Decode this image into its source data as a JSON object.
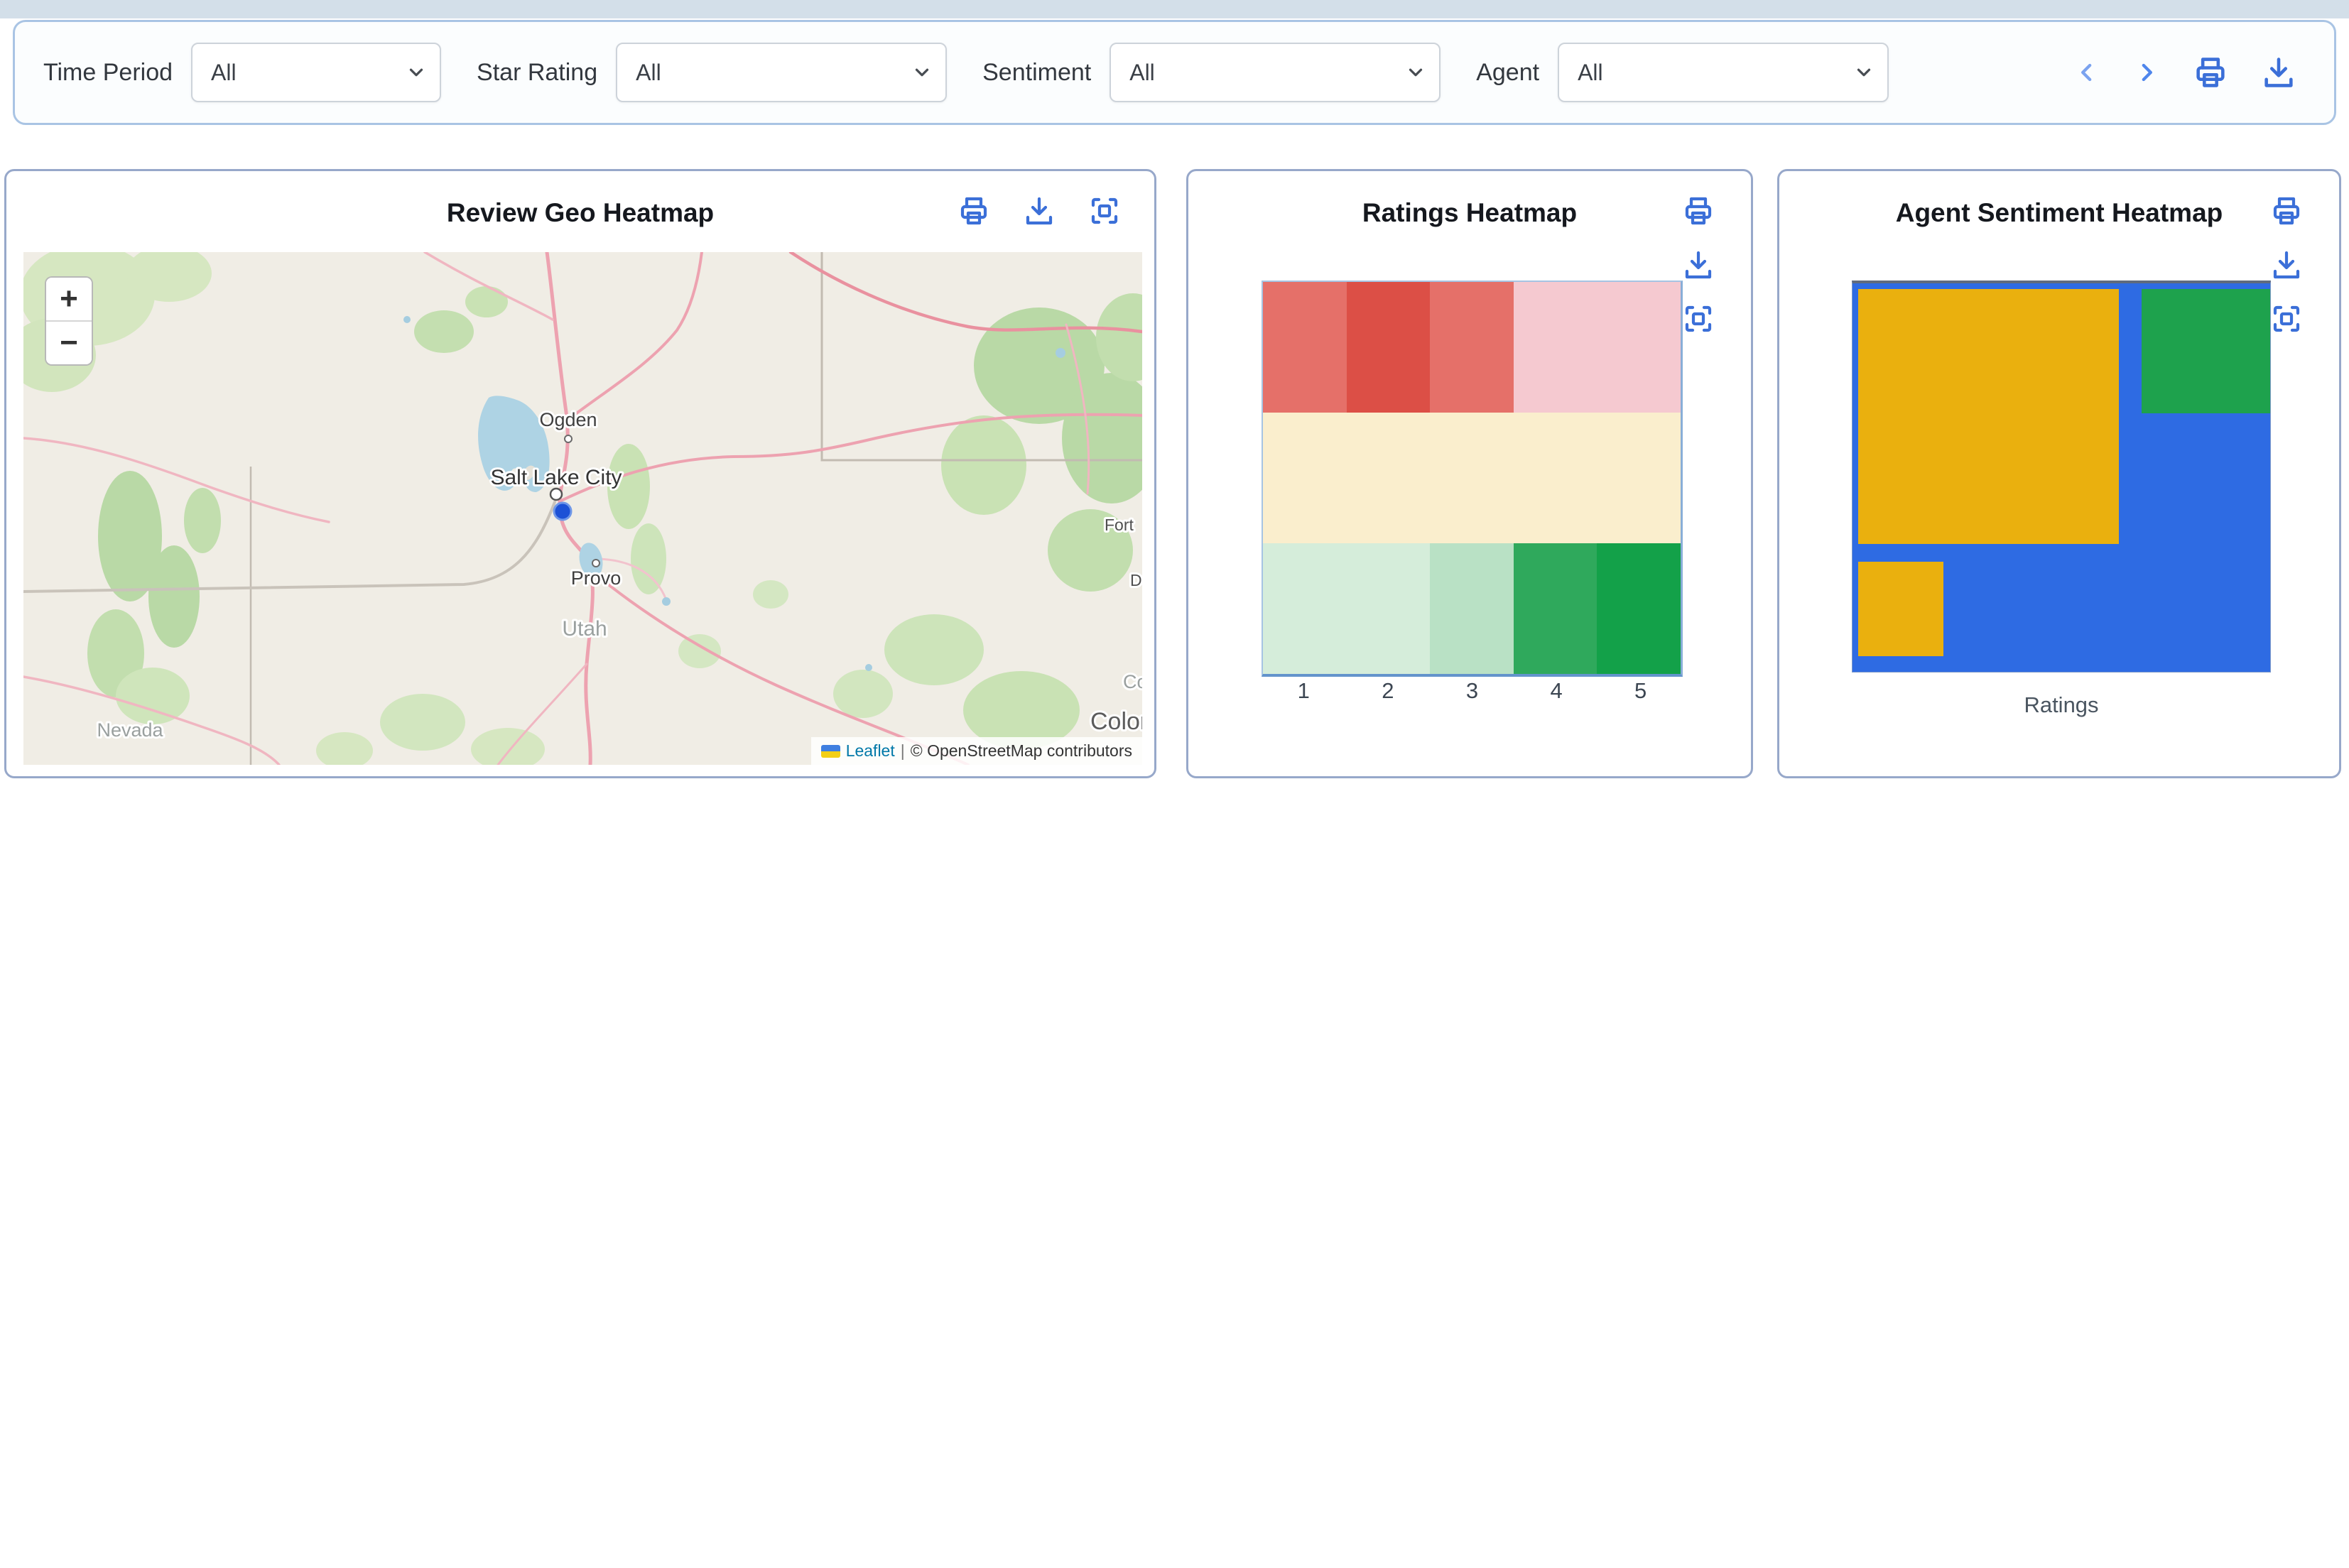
{
  "page": {
    "top_strip_color": "#d3dfe9",
    "accent_blue": "#3b6fd8"
  },
  "filter_bar": {
    "filters": [
      {
        "label": "Time Period",
        "value": "All"
      },
      {
        "label": "Star Rating",
        "value": "All"
      },
      {
        "label": "Sentiment",
        "value": "All"
      },
      {
        "label": "Agent",
        "value": "All"
      }
    ]
  },
  "cards": {
    "geo": {
      "title": "Review Geo Heatmap",
      "map": {
        "zoom_in": "+",
        "zoom_out": "−",
        "labels": {
          "city1": "Ogden",
          "city2": "Salt Lake City",
          "city3": "Provo",
          "state1": "Utah",
          "state2": "Nevada",
          "state3": "Colorado",
          "state3_clipped": "Colorado",
          "poi1": "Fort",
          "poi2": "D"
        },
        "attribution": {
          "leaflet": "Leaflet",
          "separator": "|",
          "osm": "© OpenStreetMap contributors"
        }
      }
    },
    "ratings": {
      "title": "Ratings Heatmap"
    },
    "agent": {
      "title": "Agent Sentiment Heatmap",
      "xlabel": "Ratings"
    }
  },
  "chart_data": [
    {
      "type": "heatmap",
      "title": "Ratings Heatmap",
      "x_categories": [
        "1",
        "2",
        "3",
        "4",
        "5"
      ],
      "rows": [
        {
          "name": "row-top-red",
          "cell_colors": [
            "#e57069",
            "#dc4f46",
            "#e57069",
            "#f5c9d0",
            "#f5c9d0"
          ]
        },
        {
          "name": "row-middle-cream",
          "cell_colors": [
            "#faeecd",
            "#faeecd",
            "#faeecd",
            "#faeecd",
            "#faeecd"
          ]
        },
        {
          "name": "row-bottom-green",
          "cell_colors": [
            "#d5edda",
            "#d5edda",
            "#b9e1c5",
            "#2fa95c",
            "#13a149"
          ]
        }
      ],
      "legend": "none",
      "gridlines": false
    },
    {
      "type": "treemap",
      "title": "Agent Sentiment Heatmap",
      "xlabel": "Ratings",
      "background_color": "#2e6be3",
      "blocks": [
        {
          "name": "orange-large",
          "color": "#eab00e",
          "x_pct": 1.4,
          "y_pct": 1.5,
          "w_pct": 62.4,
          "h_pct": 65.6
        },
        {
          "name": "green",
          "color": "#1ea24d",
          "x_pct": 69.2,
          "y_pct": 1.5,
          "w_pct": 30.8,
          "h_pct": 31.9
        },
        {
          "name": "orange-small",
          "color": "#eab00e",
          "x_pct": 1.4,
          "y_pct": 71.7,
          "w_pct": 20.3,
          "h_pct": 24.3
        }
      ]
    }
  ]
}
